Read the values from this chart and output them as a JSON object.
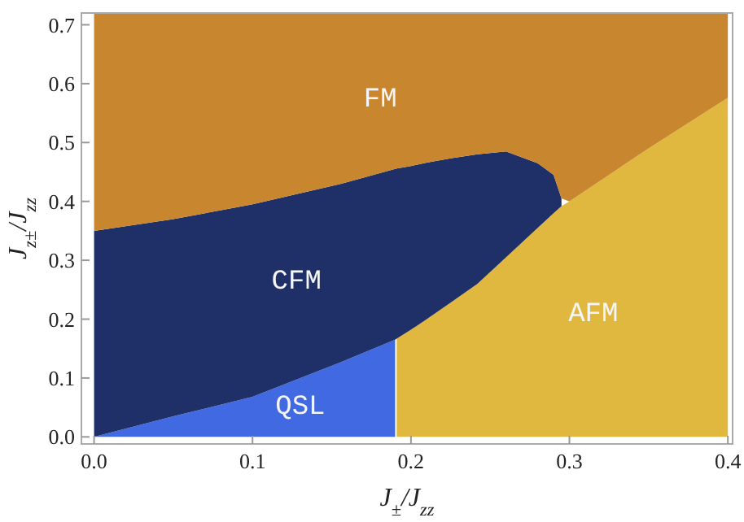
{
  "chart_data": {
    "type": "area",
    "stacked": true,
    "grid": false,
    "legend": false,
    "xlabel": "J$_{±}$/J$_{zz}$",
    "ylabel": "J$_{z±}$/J$_{zz}$",
    "xlim": [
      -0.008,
      0.403
    ],
    "ylim": [
      -0.012,
      0.72
    ],
    "xticks": [
      {
        "value": 0,
        "label": "0.0"
      },
      0.1,
      0.2,
      0.3,
      0.4
    ],
    "yticks": [
      {
        "value": 0,
        "label": "0.0"
      },
      0.1,
      0.2,
      0.3,
      0.4,
      0.5,
      0.6,
      0.7
    ],
    "x": [
      0,
      0.05,
      0.1,
      0.156,
      0.19,
      0.191,
      0.2,
      0.21,
      0.225,
      0.242,
      0.26,
      0.28,
      0.29,
      0.295,
      0.3,
      0.35,
      0.4
    ],
    "series": [
      {
        "name": "QSL",
        "color": "#4169e1",
        "values": [
          0,
          0.035,
          0.068,
          0.127,
          0.165,
          null,
          null,
          null,
          null,
          null,
          null,
          null,
          null,
          null,
          null,
          null,
          null
        ]
      },
      {
        "name": "AFM",
        "color": "#e0b840",
        "values": [
          null,
          null,
          null,
          null,
          null,
          0.167,
          0.182,
          0.2,
          0.228,
          0.26,
          0.305,
          0.355,
          0.38,
          0.392,
          0.4,
          0.49,
          0.576
        ]
      },
      {
        "name": "CFM",
        "color": "#1f3068",
        "values": [
          0.35,
          0.335,
          0.327,
          0.303,
          0.29,
          0.289,
          0.278,
          0.266,
          0.245,
          0.22,
          0.18,
          0.11,
          0.065,
          0.013,
          null,
          null,
          null
        ]
      },
      {
        "name": "FM",
        "color": "#c8862f",
        "values": [
          0.37,
          0.35,
          0.325,
          0.29,
          0.265,
          0.264,
          0.26,
          0.254,
          0.247,
          0.24,
          0.235,
          0.255,
          0.275,
          0.315,
          0.32,
          0.23,
          0.144
        ]
      }
    ]
  }
}
